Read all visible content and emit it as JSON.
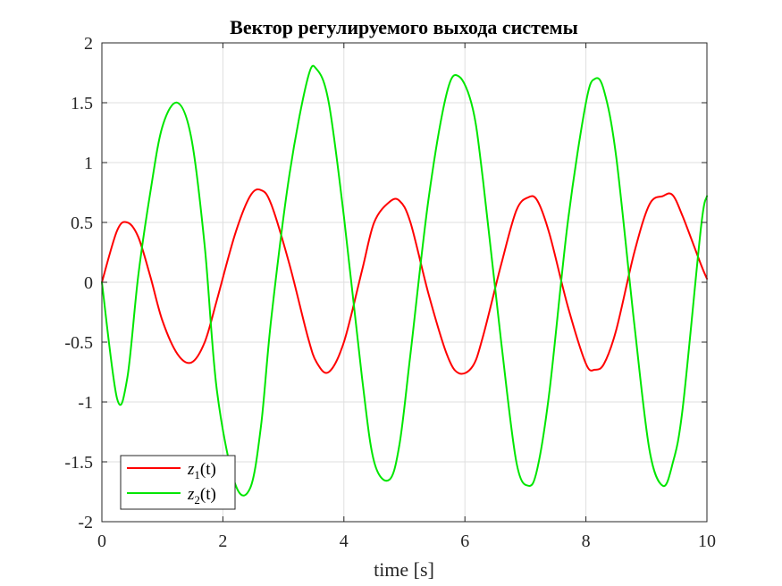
{
  "chart_data": {
    "type": "line",
    "title": "Вектор регулируемого выхода системы",
    "xlabel": "time [s]",
    "ylabel": "",
    "xlim": [
      0,
      10
    ],
    "ylim": [
      -2,
      2
    ],
    "grid": true,
    "legend_position": "bottom-left",
    "x_ticks": [
      "0",
      "2",
      "4",
      "6",
      "8",
      "10"
    ],
    "y_ticks": [
      "-2",
      "-1.5",
      "-1",
      "-0.5",
      "0",
      "0.5",
      "1",
      "1.5",
      "2"
    ],
    "x": [
      0,
      0.25,
      0.42,
      0.6,
      0.8,
      1.0,
      1.25,
      1.48,
      1.7,
      1.9,
      2.2,
      2.45,
      2.63,
      2.8,
      3.1,
      3.4,
      3.55,
      3.75,
      4.0,
      4.3,
      4.5,
      4.75,
      4.92,
      5.1,
      5.4,
      5.7,
      5.9,
      6.13,
      6.3,
      6.6,
      6.85,
      7.05,
      7.2,
      7.4,
      7.7,
      8.0,
      8.15,
      8.3,
      8.5,
      8.8,
      9.05,
      9.27,
      9.43,
      9.6,
      9.9,
      10.0
    ],
    "series": [
      {
        "name": "z1(t)",
        "name_base": "z",
        "name_subscript": "1",
        "name_arg": "(t)",
        "color": "#ff0000",
        "values": [
          0,
          0.43,
          0.5,
          0.38,
          0.05,
          -0.32,
          -0.6,
          -0.67,
          -0.5,
          -0.15,
          0.4,
          0.72,
          0.77,
          0.65,
          0.15,
          -0.45,
          -0.67,
          -0.75,
          -0.5,
          0.1,
          0.5,
          0.67,
          0.68,
          0.5,
          -0.1,
          -0.6,
          -0.76,
          -0.7,
          -0.45,
          0.15,
          0.6,
          0.71,
          0.68,
          0.4,
          -0.2,
          -0.68,
          -0.73,
          -0.68,
          -0.4,
          0.25,
          0.65,
          0.72,
          0.73,
          0.55,
          0.15,
          0.03
        ]
      },
      {
        "name": "z2(t)",
        "name_base": "z",
        "name_subscript": "2",
        "name_arg": "(t)",
        "color": "#00e600",
        "values": [
          0,
          -0.97,
          -0.8,
          0.05,
          0.75,
          1.3,
          1.5,
          1.2,
          0.3,
          -0.9,
          -1.68,
          -1.72,
          -1.2,
          -0.3,
          0.9,
          1.7,
          1.78,
          1.5,
          0.55,
          -0.8,
          -1.5,
          -1.65,
          -1.35,
          -0.6,
          0.7,
          1.58,
          1.72,
          1.45,
          0.85,
          -0.5,
          -1.5,
          -1.7,
          -1.55,
          -0.9,
          0.5,
          1.5,
          1.7,
          1.6,
          1.05,
          -0.35,
          -1.4,
          -1.7,
          -1.52,
          -1.05,
          0.45,
          0.72
        ]
      }
    ]
  }
}
